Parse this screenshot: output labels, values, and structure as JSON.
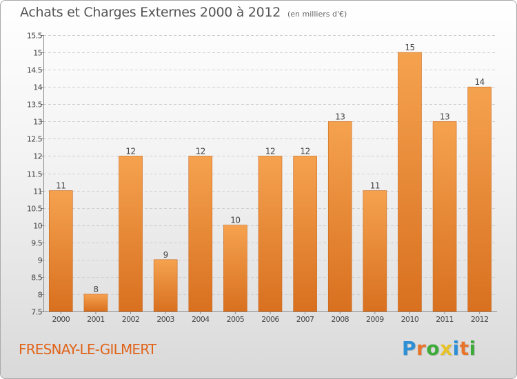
{
  "title": "Achats et Charges Externes 2000 à 2012",
  "unit_note": "(en milliers d'€)",
  "commune": "FRESNAY-LE-GILMERT",
  "logo": {
    "letters": [
      "P",
      "r",
      "o",
      "x",
      "i",
      "t",
      "i"
    ],
    "colors": [
      "#2f8fd6",
      "#e8732a",
      "#3daa3a",
      "#e8c22a",
      "#2f8fd6",
      "#e8732a",
      "#3daa3a"
    ]
  },
  "colors": {
    "bar_light": "#f5a24f",
    "bar_dark": "#d8701f",
    "text": "#444444",
    "commune": "#e0641a"
  },
  "chart_data": {
    "type": "bar",
    "title": "Achats et Charges Externes 2000 à 2012",
    "subtitle": "(en milliers d'€)",
    "xlabel": "",
    "ylabel": "",
    "categories": [
      "2000",
      "2001",
      "2002",
      "2003",
      "2004",
      "2005",
      "2006",
      "2007",
      "2008",
      "2009",
      "2010",
      "2011",
      "2012"
    ],
    "values": [
      11,
      8,
      12,
      9,
      12,
      10,
      12,
      12,
      13,
      11,
      15,
      13,
      14
    ],
    "value_labels": [
      "11",
      "8",
      "12",
      "9",
      "12",
      "10",
      "12",
      "12",
      "13",
      "11",
      "15",
      "13",
      "14"
    ],
    "ylim": [
      7.5,
      15.5
    ],
    "yticks": [
      7.5,
      8,
      8.5,
      9,
      9.5,
      10,
      10.5,
      11,
      11.5,
      12,
      12.5,
      13,
      13.5,
      14,
      14.5,
      15,
      15.5
    ],
    "ytick_labels": [
      "7.5",
      "8",
      "8.5",
      "9",
      "9.5",
      "10",
      "10.5",
      "11",
      "11.5",
      "12",
      "12.5",
      "13",
      "13.5",
      "14",
      "14.5",
      "15",
      "15.5"
    ],
    "grid": true,
    "legend": "none"
  }
}
